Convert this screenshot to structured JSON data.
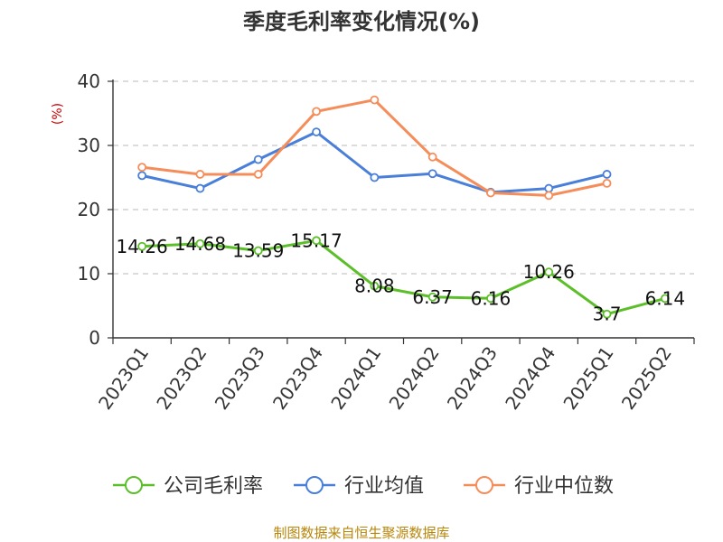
{
  "chart_data": {
    "type": "line",
    "title": "季度毛利率变化情况(%)",
    "ylabel": "(%)",
    "ylim": [
      0,
      40
    ],
    "yticks": [
      0,
      10,
      20,
      30,
      40
    ],
    "grid": true,
    "legend_position": "bottom",
    "categories": [
      "2023Q1",
      "2023Q2",
      "2023Q3",
      "2023Q4",
      "2024Q1",
      "2024Q2",
      "2024Q3",
      "2024Q4",
      "2025Q1",
      "2025Q2"
    ],
    "series": [
      {
        "name": "公司毛利率",
        "color": "#5cbf2a",
        "show_labels": true,
        "values": [
          14.26,
          14.68,
          13.59,
          15.17,
          8.08,
          6.37,
          6.16,
          10.26,
          3.7,
          6.14
        ],
        "labels": [
          "14.26",
          "14.68",
          "13.59",
          "15.17",
          "8.08",
          "6.37",
          "6.16",
          "10.26",
          "3.7",
          "6.14"
        ]
      },
      {
        "name": "行业均值",
        "color": "#4a7fd9",
        "show_labels": false,
        "values": [
          25.3,
          23.3,
          27.8,
          32.1,
          25.0,
          25.6,
          22.7,
          23.3,
          25.5,
          null
        ]
      },
      {
        "name": "行业中位数",
        "color": "#f58d5a",
        "show_labels": false,
        "values": [
          26.6,
          25.5,
          25.5,
          35.3,
          37.1,
          28.2,
          22.6,
          22.2,
          24.1,
          null
        ]
      }
    ]
  },
  "source": "制图数据来自恒生聚源数据库"
}
